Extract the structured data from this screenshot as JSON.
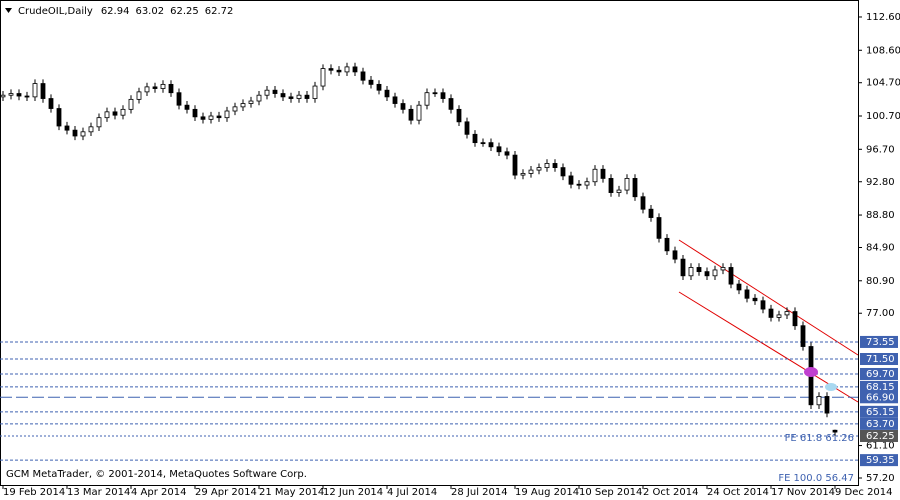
{
  "chart_data": {
    "type": "candlestick",
    "title": "CrudeOIL,Daily",
    "header_values": [
      62.94,
      63.02,
      62.25,
      62.72
    ],
    "footer": "GCM MetaTrader, © 2001-2014, MetaQuotes Software Corp.",
    "categories": [
      "19 Feb 2014",
      null,
      null,
      null,
      null,
      null,
      null,
      null,
      "13 Mar 2014",
      null,
      null,
      null,
      null,
      null,
      null,
      null,
      "4 Apr 2014",
      null,
      null,
      null,
      null,
      null,
      null,
      null,
      "29 Apr 2014",
      null,
      null,
      null,
      null,
      null,
      null,
      null,
      "21 May 2014",
      null,
      null,
      null,
      null,
      null,
      null,
      null,
      "12 Jun 2014",
      null,
      null,
      null,
      null,
      null,
      null,
      null,
      "4 Jul 2014",
      null,
      null,
      null,
      null,
      null,
      null,
      null,
      "28 Jul 2014",
      null,
      null,
      null,
      null,
      null,
      null,
      null,
      "19 Aug 2014",
      null,
      null,
      null,
      null,
      null,
      null,
      null,
      "10 Sep 2014",
      null,
      null,
      null,
      null,
      null,
      null,
      null,
      "2 Oct 2014",
      null,
      null,
      null,
      null,
      null,
      null,
      null,
      "24 Oct 2014",
      null,
      null,
      null,
      null,
      null,
      null,
      null,
      "17 Nov 2014",
      null,
      null,
      null,
      null,
      null,
      null,
      null,
      "9 Dec 2014"
    ],
    "open": [
      103.0,
      103.2,
      103.4,
      103.1,
      103.0,
      104.6,
      102.8,
      101.6,
      99.5,
      99.0,
      98.3,
      98.8,
      99.4,
      100.5,
      101.2,
      100.8,
      101.5,
      102.7,
      103.6,
      104.2,
      104.0,
      104.5,
      103.5,
      102.0,
      101.5,
      100.6,
      100.3,
      100.7,
      100.5,
      101.3,
      101.8,
      102.2,
      102.5,
      103.2,
      103.8,
      103.4,
      103.0,
      102.8,
      103.2,
      102.8,
      104.3,
      106.4,
      106.2,
      106.0,
      106.6,
      106.0,
      105.0,
      104.5,
      103.8,
      103.0,
      102.2,
      101.5,
      100.2,
      102.0,
      103.5,
      103.5,
      102.8,
      101.5,
      100.0,
      98.5,
      97.5,
      97.5,
      97.0,
      96.4,
      96.0,
      93.6,
      93.8,
      94.2,
      94.5,
      95.0,
      94.5,
      93.5,
      92.5,
      92.4,
      92.8,
      94.3,
      93.2,
      91.5,
      91.8,
      93.2,
      91.0,
      89.5,
      88.5,
      86.0,
      84.5,
      83.5,
      81.5,
      82.5,
      82.0,
      81.5,
      82.2,
      82.5,
      80.5,
      79.8,
      78.8,
      78.5,
      77.5,
      76.5,
      76.8,
      77.2,
      75.5,
      73.0,
      66.0,
      67.0,
      62.94
    ],
    "high": [
      103.7,
      103.9,
      103.9,
      103.6,
      105.1,
      105.1,
      103.3,
      102.1,
      100.0,
      99.5,
      99.3,
      99.9,
      101.0,
      101.7,
      101.7,
      102.0,
      103.2,
      104.1,
      104.7,
      104.7,
      105.0,
      105.0,
      104.0,
      102.5,
      102.0,
      101.1,
      101.2,
      101.2,
      101.8,
      102.3,
      102.7,
      103.0,
      103.7,
      104.3,
      104.3,
      103.9,
      103.5,
      103.7,
      103.7,
      104.8,
      106.9,
      106.9,
      106.7,
      107.1,
      107.1,
      106.5,
      105.5,
      105.0,
      104.3,
      103.5,
      102.7,
      102.0,
      102.5,
      104.0,
      104.0,
      104.0,
      103.3,
      102.0,
      100.5,
      99.0,
      98.0,
      98.0,
      97.5,
      96.9,
      96.5,
      94.3,
      94.7,
      95.0,
      95.5,
      95.5,
      95.0,
      94.0,
      93.0,
      93.3,
      94.8,
      94.8,
      93.7,
      92.3,
      93.7,
      93.7,
      91.5,
      90.0,
      89.0,
      86.5,
      85.0,
      84.0,
      83.0,
      83.0,
      82.5,
      82.7,
      83.0,
      83.0,
      81.0,
      80.3,
      79.3,
      79.0,
      78.0,
      77.3,
      77.7,
      77.7,
      76.0,
      73.5,
      67.5,
      67.5,
      63.02
    ],
    "low": [
      102.5,
      102.7,
      102.6,
      102.5,
      102.5,
      102.3,
      101.1,
      99.0,
      98.5,
      97.8,
      97.8,
      98.3,
      98.9,
      100.0,
      100.3,
      100.3,
      101.0,
      102.2,
      103.1,
      103.5,
      103.5,
      103.0,
      101.5,
      101.0,
      100.1,
      99.8,
      99.8,
      100.0,
      100.0,
      100.8,
      101.3,
      101.7,
      102.0,
      102.7,
      102.9,
      102.5,
      102.3,
      102.3,
      102.3,
      102.3,
      103.8,
      105.7,
      105.5,
      105.5,
      105.5,
      104.5,
      104.0,
      103.3,
      102.5,
      101.7,
      101.0,
      99.7,
      99.7,
      101.5,
      103.0,
      102.3,
      101.0,
      99.5,
      98.0,
      97.0,
      97.0,
      96.5,
      95.9,
      95.5,
      93.1,
      93.1,
      93.3,
      93.7,
      94.0,
      94.0,
      93.0,
      92.0,
      91.9,
      91.9,
      92.3,
      92.7,
      91.0,
      91.0,
      91.3,
      90.5,
      89.0,
      88.0,
      85.5,
      84.0,
      83.0,
      81.0,
      81.0,
      81.5,
      81.0,
      81.0,
      81.7,
      80.0,
      79.3,
      78.3,
      78.0,
      77.0,
      76.0,
      76.0,
      76.3,
      75.0,
      72.5,
      65.5,
      65.5,
      64.5,
      62.25
    ],
    "close": [
      103.2,
      103.4,
      103.1,
      103.0,
      104.6,
      102.8,
      101.6,
      99.5,
      99.0,
      98.3,
      98.8,
      99.4,
      100.5,
      101.2,
      100.8,
      101.5,
      102.7,
      103.6,
      104.2,
      104.0,
      104.5,
      103.5,
      102.0,
      101.5,
      100.6,
      100.3,
      100.7,
      100.5,
      101.3,
      101.8,
      102.2,
      102.5,
      103.2,
      103.8,
      103.4,
      103.0,
      102.8,
      103.2,
      102.8,
      104.3,
      106.4,
      106.2,
      106.0,
      106.6,
      106.0,
      105.0,
      104.5,
      103.8,
      103.0,
      102.2,
      101.5,
      100.2,
      102.0,
      103.5,
      103.5,
      102.8,
      101.5,
      100.0,
      98.5,
      97.5,
      97.5,
      97.0,
      96.4,
      96.0,
      93.6,
      93.8,
      94.2,
      94.5,
      95.0,
      94.5,
      93.5,
      92.5,
      92.4,
      92.8,
      94.3,
      93.2,
      91.5,
      91.8,
      93.2,
      91.0,
      89.5,
      88.5,
      86.0,
      84.5,
      83.5,
      81.5,
      82.5,
      82.0,
      81.5,
      82.2,
      82.5,
      80.5,
      79.8,
      78.8,
      78.5,
      77.5,
      76.5,
      76.8,
      77.2,
      75.5,
      73.0,
      66.0,
      67.0,
      65.0,
      62.72
    ],
    "ylim": [
      56.36,
      114.64
    ],
    "yticks": [
      {
        "value": 112.6,
        "label": "112.60"
      },
      {
        "value": 108.6,
        "label": "108.60"
      },
      {
        "value": 104.7,
        "label": "104.70"
      },
      {
        "value": 100.7,
        "label": "100.70"
      },
      {
        "value": 96.7,
        "label": "96.70"
      },
      {
        "value": 92.8,
        "label": "92.80"
      },
      {
        "value": 88.8,
        "label": "88.80"
      },
      {
        "value": 84.9,
        "label": "84.90"
      },
      {
        "value": 80.9,
        "label": "80.90"
      },
      {
        "value": 77.0,
        "label": "77.00"
      },
      {
        "value": 61.1,
        "label": "61.10"
      },
      {
        "value": 57.2,
        "label": "57.20"
      }
    ],
    "levels": [
      {
        "value": 73.55,
        "label": "73.55"
      },
      {
        "value": 71.5,
        "label": "71.50"
      },
      {
        "value": 69.7,
        "label": "69.70"
      },
      {
        "value": 68.15,
        "label": "68.15"
      },
      {
        "value": 66.9,
        "label": "66.90"
      },
      {
        "value": 65.15,
        "label": "65.15"
      },
      {
        "value": 63.7,
        "label": "63.70"
      },
      {
        "value": 59.35,
        "label": "59.35"
      }
    ],
    "price_line": {
      "value": 62.25,
      "label": "62.25"
    },
    "annotations": [
      {
        "text": "FE 61.8 61.26",
        "value": 61.26
      },
      {
        "text": "FE 100.0 56.47",
        "value": 56.47
      }
    ]
  }
}
